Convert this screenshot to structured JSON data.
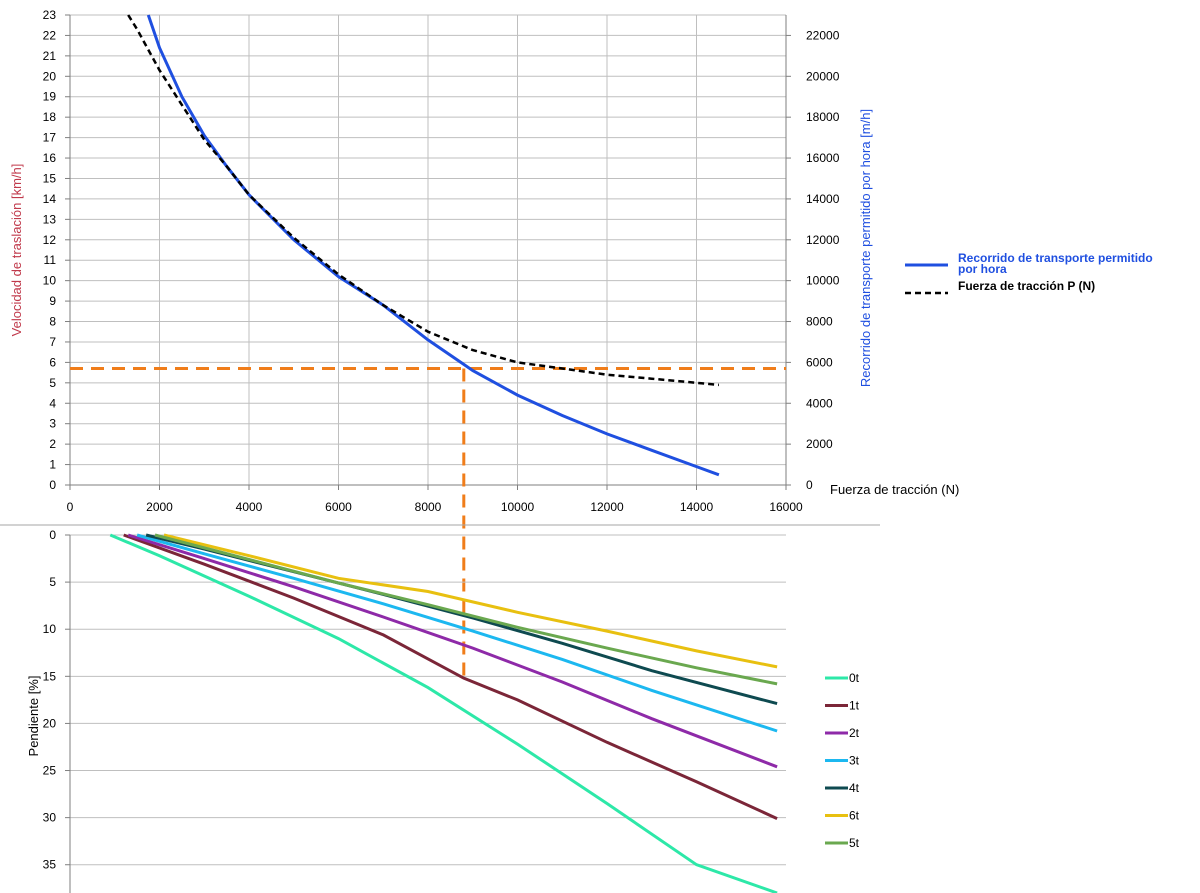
{
  "chart_data": [
    {
      "type": "line",
      "x_axis": {
        "label": "Fuerza de tracción (N)",
        "range": [
          0,
          16000
        ],
        "ticks": [
          "0",
          "2000",
          "4000",
          "6000",
          "8000",
          "10000",
          "12000",
          "14000",
          "16000"
        ]
      },
      "y_axis_left": {
        "label": "Velocidad de traslación  [km/h]",
        "label_color": "#c0394b",
        "range": [
          0,
          23
        ],
        "ticks": [
          "0",
          "1",
          "2",
          "3",
          "4",
          "5",
          "6",
          "7",
          "8",
          "9",
          "10",
          "11",
          "12",
          "13",
          "14",
          "15",
          "16",
          "17",
          "18",
          "19",
          "20",
          "21",
          "22",
          "23"
        ]
      },
      "y_axis_right": {
        "label": "Recorrido de transporte permitido por hora [m/h]",
        "label_color": "#1f4fe0",
        "range": [
          0,
          23000
        ],
        "ticks": [
          "0",
          "2000",
          "4000",
          "6000",
          "8000",
          "10000",
          "12000",
          "14000",
          "16000",
          "18000",
          "20000",
          "22000"
        ]
      },
      "grid": true,
      "legend_position": "right",
      "legend": [
        {
          "label_lines": [
            "Recorrido de transporte permitido",
            "por hora"
          ],
          "color": "#1f4fe0",
          "style": "solid",
          "text_color": "#1f4fe0"
        },
        {
          "label_lines": [
            "Fuerza de tracción P (N)"
          ],
          "color": "#000000",
          "style": "dashed",
          "text_color": "#000000"
        }
      ],
      "series": [
        {
          "name": "Recorrido de transporte permitido por hora",
          "axis": "right",
          "color": "#1f4fe0",
          "style": "solid",
          "points": [
            [
              1750,
              23000
            ],
            [
              2000,
              21400
            ],
            [
              2500,
              19000
            ],
            [
              3000,
              17100
            ],
            [
              3500,
              15600
            ],
            [
              4000,
              14200
            ],
            [
              5000,
              12000
            ],
            [
              6000,
              10200
            ],
            [
              7000,
              8800
            ],
            [
              8000,
              7100
            ],
            [
              8800,
              5900
            ],
            [
              9000,
              5600
            ],
            [
              10000,
              4400
            ],
            [
              11000,
              3400
            ],
            [
              12000,
              2500
            ],
            [
              13000,
              1700
            ],
            [
              14000,
              900
            ],
            [
              14500,
              500
            ]
          ]
        },
        {
          "name": "Fuerza de tracción P (N)",
          "axis": "left",
          "color": "#000000",
          "style": "dashed",
          "points": [
            [
              1300,
              23
            ],
            [
              1500,
              22.3
            ],
            [
              2000,
              20.3
            ],
            [
              2500,
              18.6
            ],
            [
              3000,
              16.9
            ],
            [
              3500,
              15.6
            ],
            [
              4000,
              14.2
            ],
            [
              5000,
              12.1
            ],
            [
              6000,
              10.3
            ],
            [
              7000,
              8.8
            ],
            [
              8000,
              7.5
            ],
            [
              9000,
              6.6
            ],
            [
              10000,
              6.0
            ],
            [
              11000,
              5.7
            ],
            [
              12000,
              5.4
            ],
            [
              13000,
              5.2
            ],
            [
              14000,
              5.0
            ],
            [
              14500,
              4.9
            ]
          ]
        }
      ],
      "reference_lines": [
        {
          "orientation": "horizontal",
          "y_left": 5.7,
          "x_from": 0,
          "x_to": 16000,
          "color": "#f07d1a",
          "style": "dashed"
        },
        {
          "orientation": "vertical",
          "x": 8800,
          "y_from_left": 5.7,
          "color": "#f07d1a",
          "style": "dashed"
        }
      ]
    },
    {
      "type": "line",
      "x_axis": {
        "range": [
          0,
          16000
        ],
        "shared_with_upper": true
      },
      "y_axis_left": {
        "label": "Pendiente  [%]",
        "range": [
          0,
          38
        ],
        "inverted": true,
        "ticks": [
          "0",
          "5",
          "10",
          "15",
          "20",
          "25",
          "30",
          "35"
        ]
      },
      "grid": true,
      "legend_position": "right",
      "legend_order": [
        "0t",
        "1t",
        "2t",
        "3t",
        "4t",
        "6t",
        "5t"
      ],
      "series": [
        {
          "name": "0t",
          "color": "#2de8a8",
          "points": [
            [
              900,
              0
            ],
            [
              2000,
              2.2
            ],
            [
              4000,
              6.5
            ],
            [
              6000,
              11.0
            ],
            [
              8000,
              16.2
            ],
            [
              10000,
              22.2
            ],
            [
              12000,
              28.5
            ],
            [
              14000,
              35.0
            ],
            [
              15800,
              38.0
            ]
          ]
        },
        {
          "name": "1t",
          "color": "#7b2638",
          "points": [
            [
              1200,
              0
            ],
            [
              3000,
              3.1
            ],
            [
              5000,
              6.7
            ],
            [
              7000,
              10.6
            ],
            [
              8800,
              15.2
            ],
            [
              10000,
              17.5
            ],
            [
              12000,
              22.0
            ],
            [
              14000,
              26.2
            ],
            [
              15800,
              30.1
            ]
          ]
        },
        {
          "name": "2t",
          "color": "#8e2aa8",
          "points": [
            [
              1300,
              0
            ],
            [
              3000,
              2.5
            ],
            [
              5000,
              5.5
            ],
            [
              7000,
              8.7
            ],
            [
              9000,
              12.0
            ],
            [
              11000,
              15.6
            ],
            [
              13000,
              19.5
            ],
            [
              15800,
              24.6
            ]
          ]
        },
        {
          "name": "3t",
          "color": "#1cb8f0",
          "points": [
            [
              1500,
              0
            ],
            [
              3000,
              2.0
            ],
            [
              5000,
              4.6
            ],
            [
              7000,
              7.3
            ],
            [
              9000,
              10.2
            ],
            [
              11000,
              13.2
            ],
            [
              13000,
              16.5
            ],
            [
              15800,
              20.8
            ]
          ]
        },
        {
          "name": "4t",
          "color": "#0e4a50",
          "points": [
            [
              1700,
              0
            ],
            [
              3000,
              1.5
            ],
            [
              5000,
              3.9
            ],
            [
              7000,
              6.3
            ],
            [
              9000,
              8.8
            ],
            [
              11000,
              11.5
            ],
            [
              13000,
              14.4
            ],
            [
              15800,
              17.9
            ]
          ]
        },
        {
          "name": "6t",
          "color": "#e8c010",
          "points": [
            [
              2100,
              0
            ],
            [
              4000,
              2.2
            ],
            [
              6000,
              4.6
            ],
            [
              8000,
              6.0
            ],
            [
              10000,
              8.2
            ],
            [
              12000,
              10.2
            ],
            [
              14000,
              12.3
            ],
            [
              15800,
              14.0
            ]
          ]
        },
        {
          "name": "5t",
          "color": "#6aa84f",
          "points": [
            [
              1900,
              0
            ],
            [
              4000,
              2.6
            ],
            [
              6000,
              5.1
            ],
            [
              8000,
              7.4
            ],
            [
              10000,
              9.8
            ],
            [
              12000,
              12.0
            ],
            [
              14000,
              14.1
            ],
            [
              15800,
              15.8
            ]
          ]
        }
      ]
    }
  ]
}
